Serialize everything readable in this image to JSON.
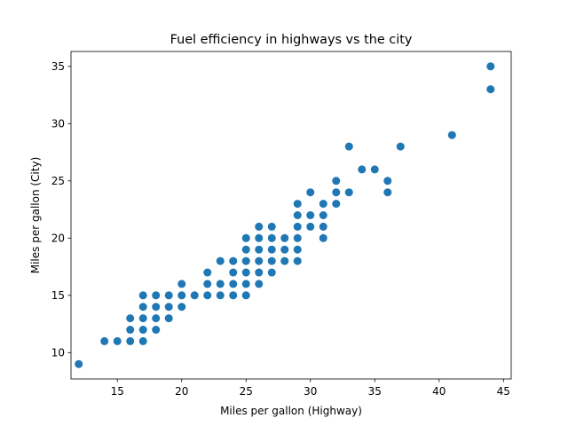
{
  "chart_data": {
    "type": "scatter",
    "title": "Fuel efficiency in highways vs the city",
    "xlabel": "Miles per gallon (Highway)",
    "ylabel": "Miles per gallon (City)",
    "xlim": [
      11.4,
      45.6
    ],
    "ylim": [
      7.7,
      36.3
    ],
    "xticks": [
      15,
      20,
      25,
      30,
      35,
      40,
      45
    ],
    "yticks": [
      10,
      15,
      20,
      25,
      30,
      35
    ],
    "grid": false,
    "marker_color": "#1f77b4",
    "points": [
      [
        12,
        9
      ],
      [
        14,
        11
      ],
      [
        15,
        11
      ],
      [
        16,
        11
      ],
      [
        16,
        12
      ],
      [
        16,
        13
      ],
      [
        17,
        11
      ],
      [
        17,
        12
      ],
      [
        17,
        13
      ],
      [
        17,
        14
      ],
      [
        17,
        15
      ],
      [
        18,
        12
      ],
      [
        18,
        13
      ],
      [
        18,
        14
      ],
      [
        18,
        15
      ],
      [
        19,
        13
      ],
      [
        19,
        14
      ],
      [
        19,
        15
      ],
      [
        20,
        14
      ],
      [
        20,
        15
      ],
      [
        20,
        16
      ],
      [
        21,
        15
      ],
      [
        22,
        15
      ],
      [
        22,
        16
      ],
      [
        22,
        17
      ],
      [
        23,
        15
      ],
      [
        23,
        16
      ],
      [
        23,
        18
      ],
      [
        24,
        15
      ],
      [
        24,
        16
      ],
      [
        24,
        17
      ],
      [
        24,
        18
      ],
      [
        25,
        15
      ],
      [
        25,
        16
      ],
      [
        25,
        17
      ],
      [
        25,
        18
      ],
      [
        25,
        19
      ],
      [
        25,
        20
      ],
      [
        26,
        16
      ],
      [
        26,
        17
      ],
      [
        26,
        18
      ],
      [
        26,
        19
      ],
      [
        26,
        20
      ],
      [
        26,
        21
      ],
      [
        27,
        17
      ],
      [
        27,
        18
      ],
      [
        27,
        19
      ],
      [
        27,
        20
      ],
      [
        27,
        21
      ],
      [
        28,
        18
      ],
      [
        28,
        19
      ],
      [
        28,
        20
      ],
      [
        29,
        18
      ],
      [
        29,
        19
      ],
      [
        29,
        20
      ],
      [
        29,
        21
      ],
      [
        29,
        22
      ],
      [
        29,
        23
      ],
      [
        30,
        21
      ],
      [
        30,
        22
      ],
      [
        30,
        24
      ],
      [
        31,
        20
      ],
      [
        31,
        21
      ],
      [
        31,
        22
      ],
      [
        31,
        23
      ],
      [
        32,
        23
      ],
      [
        32,
        24
      ],
      [
        32,
        25
      ],
      [
        33,
        24
      ],
      [
        33,
        28
      ],
      [
        34,
        26
      ],
      [
        35,
        26
      ],
      [
        36,
        24
      ],
      [
        36,
        25
      ],
      [
        37,
        28
      ],
      [
        41,
        29
      ],
      [
        44,
        33
      ],
      [
        44,
        35
      ]
    ]
  }
}
